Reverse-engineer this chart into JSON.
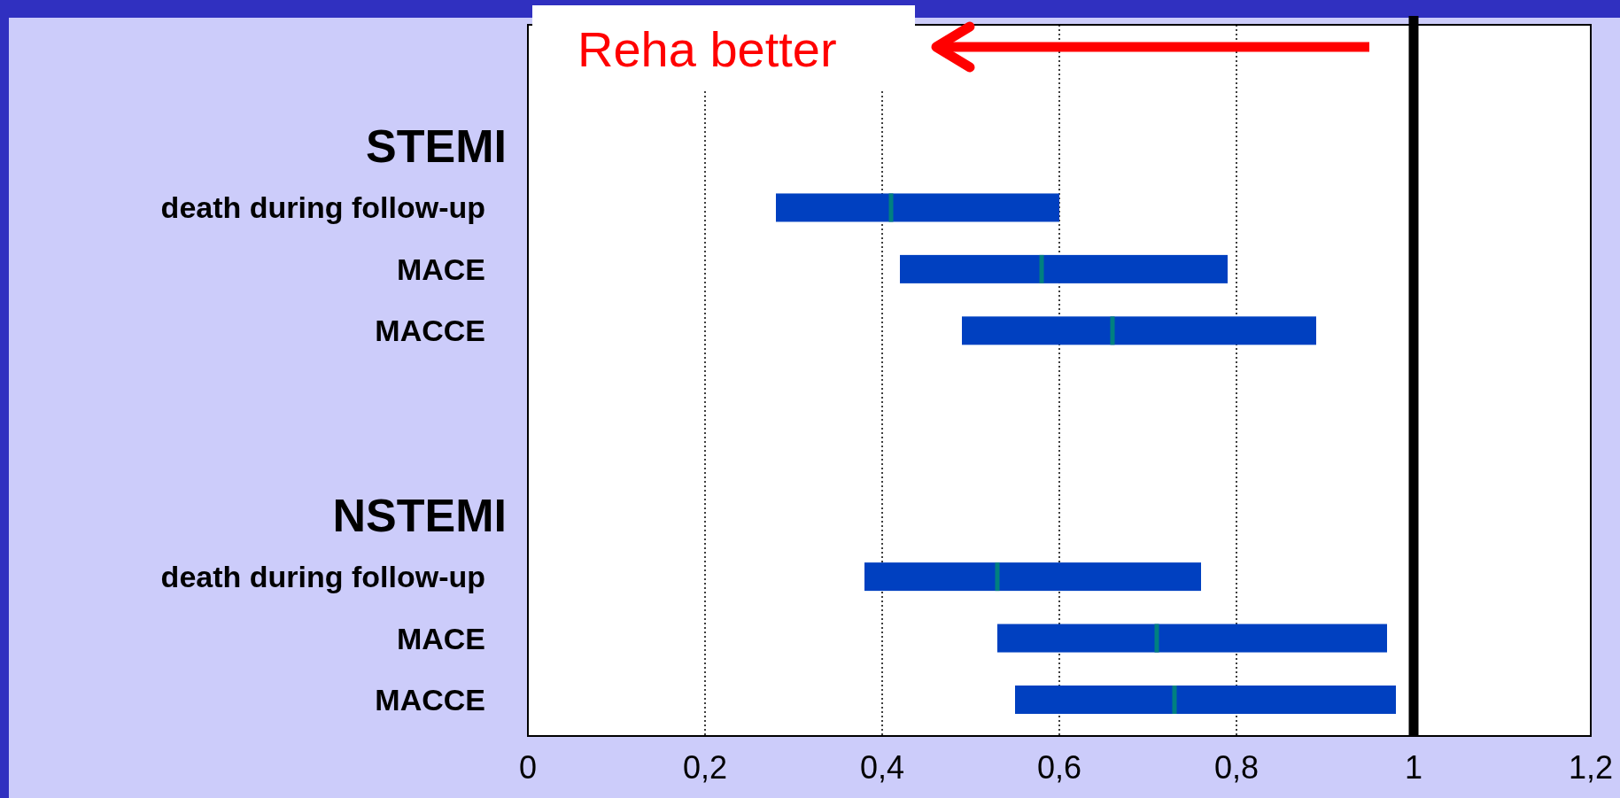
{
  "chart_data": {
    "type": "box",
    "orientation": "horizontal",
    "categories": [
      "STEMI",
      "death during follow-up",
      "MACE",
      "MACCE",
      null,
      null,
      "NSTEMI",
      "death during follow-up",
      "MACE",
      "MACCE"
    ],
    "series": [
      {
        "color": "#0040c0",
        "boxes": [
          null,
          {
            "low": 0.28,
            "q1": 0.28,
            "median": 0.41,
            "q3": 0.6,
            "high": 0.6
          },
          {
            "low": 0.42,
            "q1": 0.42,
            "median": 0.58,
            "q3": 0.79,
            "high": 0.79
          },
          {
            "low": 0.49,
            "q1": 0.49,
            "median": 0.66,
            "q3": 0.89,
            "high": 0.89
          },
          null,
          null,
          null,
          {
            "low": 0.38,
            "q1": 0.38,
            "median": 0.53,
            "q3": 0.76,
            "high": 0.76
          },
          {
            "low": 0.53,
            "q1": 0.53,
            "median": 0.71,
            "q3": 0.97,
            "high": 0.97
          },
          {
            "low": 0.55,
            "q1": 0.55,
            "median": 0.73,
            "q3": 0.98,
            "high": 0.98
          }
        ]
      }
    ],
    "xlim": [
      0,
      1.2
    ],
    "xticks": [
      0,
      {
        "value": 0.2,
        "label": "0,2"
      },
      {
        "value": 0.4,
        "label": "0,4"
      },
      {
        "value": 0.6,
        "label": "0,6"
      },
      {
        "value": 0.8,
        "label": "0,8"
      },
      1,
      {
        "value": 1.2,
        "label": "1,2"
      }
    ],
    "grid": "x",
    "ref_lines": [
      {
        "axis": "x",
        "value": 1,
        "color": "#000000"
      }
    ],
    "annotations": [
      "Reha better"
    ]
  }
}
